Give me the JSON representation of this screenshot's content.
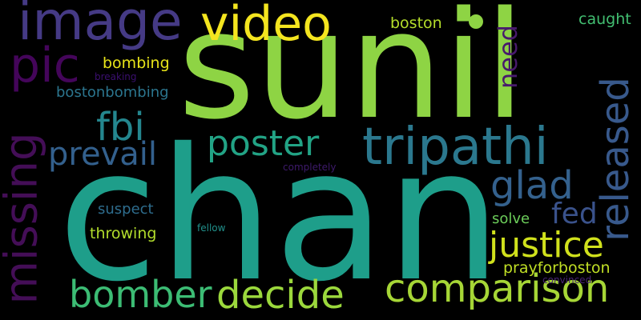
{
  "words": [
    {
      "text": "sunil",
      "color": "#8ed444"
    },
    {
      "text": "chan",
      "color": "#1e9e8a"
    },
    {
      "text": "tripathi",
      "color": "#2b788e"
    },
    {
      "text": "missing",
      "color": "#440e57"
    },
    {
      "text": "image",
      "color": "#453a85"
    },
    {
      "text": "video",
      "color": "#f4e51f"
    },
    {
      "text": "pic",
      "color": "#44055a"
    },
    {
      "text": "poster",
      "color": "#22a385"
    },
    {
      "text": "comparison",
      "color": "#a6d636"
    },
    {
      "text": "decide",
      "color": "#9bd83c"
    },
    {
      "text": "bomber",
      "color": "#3cbc74"
    },
    {
      "text": "justice",
      "color": "#d0e11c"
    },
    {
      "text": "released",
      "color": "#38598c"
    },
    {
      "text": "prevail",
      "color": "#33608d"
    },
    {
      "text": "glad",
      "color": "#34618d"
    },
    {
      "text": "fbi",
      "color": "#24868e"
    },
    {
      "text": "fed",
      "color": "#3a528b"
    },
    {
      "text": "need",
      "color": "#481a6c"
    },
    {
      "text": "boston",
      "color": "#b5de2b"
    },
    {
      "text": "caught",
      "color": "#42be71"
    },
    {
      "text": "bombing",
      "color": "#e8e419"
    },
    {
      "text": "bostonbombing",
      "color": "#2b758e"
    },
    {
      "text": "suspect",
      "color": "#2e6d8e"
    },
    {
      "text": "throwing",
      "color": "#b2dd2c"
    },
    {
      "text": "solve",
      "color": "#6ccd5a"
    },
    {
      "text": "prayforboston",
      "color": "#c0df25"
    },
    {
      "text": "breaking",
      "color": "#3b0f70"
    },
    {
      "text": "completely",
      "color": "#3e1a6c"
    },
    {
      "text": "fellow",
      "color": "#21918c"
    },
    {
      "text": "convinced",
      "color": "#482475"
    }
  ]
}
